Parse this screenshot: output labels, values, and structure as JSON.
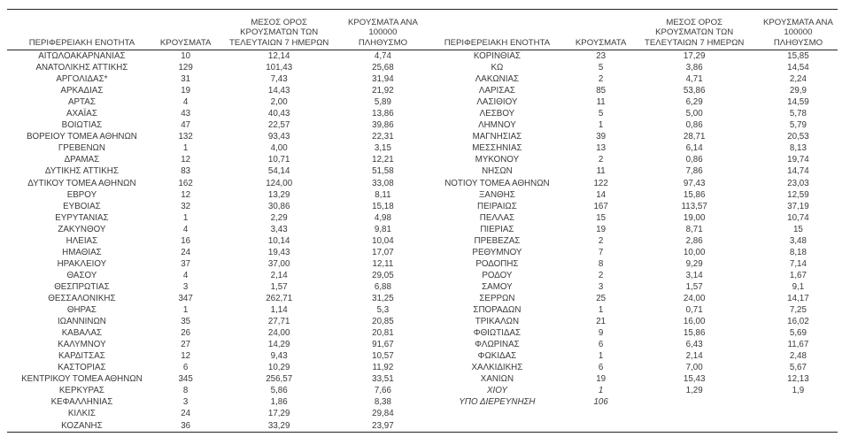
{
  "accent_colors": {
    "text": "#3a3a3a",
    "rule_lines": "#262626",
    "background": "#ffffff"
  },
  "columns": {
    "region": "ΠΕΡΙΦΕΡΕΙΑΚΗ ΕΝΟΤΗΤΑ",
    "cases": "ΚΡΟΥΣΜΑΤΑ",
    "avg7": "ΜΕΣΟΣ ΟΡΟΣ\nΚΡΟΥΣΜΑΤΩΝ ΤΩΝ\nΤΕΛΕΥΤΑΙΩΝ 7 ΗΜΕΡΩΝ",
    "per100k": "ΚΡΟΥΣΜΑΤΑ ΑΝΑ 100000\nΠΛΗΘΥΣΜΟ"
  },
  "tables": {
    "left": {
      "rows": [
        [
          "ΑΙΤΩΛΟΑΚΑΡΝΑΝΙΑΣ",
          "10",
          "12,14",
          "4,74"
        ],
        [
          "ΑΝΑΤΟΛΙΚΗΣ ΑΤΤΙΚΗΣ",
          "129",
          "101,43",
          "25,68"
        ],
        [
          "ΑΡΓΟΛΙΔΑΣ*",
          "31",
          "7,43",
          "31,94"
        ],
        [
          "ΑΡΚΑΔΙΑΣ",
          "19",
          "14,43",
          "21,92"
        ],
        [
          "ΑΡΤΑΣ",
          "4",
          "2,00",
          "5,89"
        ],
        [
          "ΑΧΑΪΑΣ",
          "43",
          "40,43",
          "13,86"
        ],
        [
          "ΒΟΙΩΤΙΑΣ",
          "47",
          "22,57",
          "39,86"
        ],
        [
          "ΒΟΡΕΙΟΥ ΤΟΜΕΑ ΑΘΗΝΩΝ",
          "132",
          "93,43",
          "22,31"
        ],
        [
          "ΓΡΕΒΕΝΩΝ",
          "1",
          "4,00",
          "3,15"
        ],
        [
          "ΔΡΑΜΑΣ",
          "12",
          "10,71",
          "12,21"
        ],
        [
          "ΔΥΤΙΚΗΣ ΑΤΤΙΚΗΣ",
          "83",
          "54,14",
          "51,58"
        ],
        [
          "ΔΥΤΙΚΟΥ ΤΟΜΕΑ ΑΘΗΝΩΝ",
          "162",
          "124,00",
          "33,08"
        ],
        [
          "ΕΒΡΟΥ",
          "12",
          "13,29",
          "8,11"
        ],
        [
          "ΕΥΒΟΙΑΣ",
          "32",
          "30,86",
          "15,18"
        ],
        [
          "ΕΥΡΥΤΑΝΙΑΣ",
          "1",
          "2,29",
          "4,98"
        ],
        [
          "ΖΑΚΥΝΘΟΥ",
          "4",
          "3,43",
          "9,81"
        ],
        [
          "ΗΛΕΙΑΣ",
          "16",
          "10,14",
          "10,04"
        ],
        [
          "ΗΜΑΘΙΑΣ",
          "24",
          "19,43",
          "17,07"
        ],
        [
          "ΗΡΑΚΛΕΙΟΥ",
          "37",
          "37,00",
          "12,11"
        ],
        [
          "ΘΑΣΟΥ",
          "4",
          "2,14",
          "29,05"
        ],
        [
          "ΘΕΣΠΡΩΤΙΑΣ",
          "3",
          "1,57",
          "6,88"
        ],
        [
          "ΘΕΣΣΑΛΟΝΙΚΗΣ",
          "347",
          "262,71",
          "31,25"
        ],
        [
          "ΘΗΡΑΣ",
          "1",
          "1,14",
          "5,3"
        ],
        [
          "ΙΩΑΝΝΙΝΩΝ",
          "35",
          "27,71",
          "20,85"
        ],
        [
          "ΚΑΒΑΛΑΣ",
          "26",
          "24,00",
          "20,81"
        ],
        [
          "ΚΑΛΥΜΝΟΥ",
          "27",
          "14,29",
          "91,67"
        ],
        [
          "ΚΑΡΔΙΤΣΑΣ",
          "12",
          "9,43",
          "10,57"
        ],
        [
          "ΚΑΣΤΟΡΙΑΣ",
          "6",
          "10,29",
          "11,92"
        ],
        [
          "ΚΕΝΤΡΙΚΟΥ ΤΟΜΕΑ ΑΘΗΝΩΝ",
          "345",
          "256,57",
          "33,51"
        ],
        [
          "ΚΕΡΚΥΡΑΣ",
          "8",
          "5,86",
          "7,66"
        ],
        [
          "ΚΕΦΑΛΛΗΝΙΑΣ",
          "3",
          "1,86",
          "8,38"
        ],
        [
          "ΚΙΛΚΙΣ",
          "24",
          "17,29",
          "29,84"
        ],
        [
          "ΚΟΖΑΝΗΣ",
          "36",
          "33,29",
          "23,97"
        ]
      ],
      "italic_cells": []
    },
    "right": {
      "rows": [
        [
          "ΚΟΡΙΝΘΙΑΣ",
          "23",
          "17,29",
          "15,85"
        ],
        [
          "ΚΩ",
          "5",
          "3,86",
          "14,54"
        ],
        [
          "ΛΑΚΩΝΙΑΣ",
          "2",
          "4,71",
          "2,24"
        ],
        [
          "ΛΑΡΙΣΑΣ",
          "85",
          "53,86",
          "29,9"
        ],
        [
          "ΛΑΣΙΘΙΟΥ",
          "11",
          "6,29",
          "14,59"
        ],
        [
          "ΛΕΣΒΟΥ",
          "5",
          "5,00",
          "5,78"
        ],
        [
          "ΛΗΜΝΟΥ",
          "1",
          "0,86",
          "5,79"
        ],
        [
          "ΜΑΓΝΗΣΙΑΣ",
          "39",
          "28,71",
          "20,53"
        ],
        [
          "ΜΕΣΣΗΝΙΑΣ",
          "13",
          "6,14",
          "8,13"
        ],
        [
          "ΜΥΚΟΝΟΥ",
          "2",
          "0,86",
          "19,74"
        ],
        [
          "ΝΗΣΩΝ",
          "11",
          "7,86",
          "14,74"
        ],
        [
          "ΝΟΤΙΟΥ ΤΟΜΕΑ ΑΘΗΝΩΝ",
          "122",
          "97,43",
          "23,03"
        ],
        [
          "ΞΑΝΘΗΣ",
          "14",
          "15,86",
          "12,59"
        ],
        [
          "ΠΕΙΡΑΙΩΣ",
          "167",
          "113,57",
          "37,19"
        ],
        [
          "ΠΕΛΛΑΣ",
          "15",
          "19,00",
          "10,74"
        ],
        [
          "ΠΙΕΡΙΑΣ",
          "19",
          "8,71",
          "15"
        ],
        [
          "ΠΡΕΒΕΖΑΣ",
          "2",
          "2,86",
          "3,48"
        ],
        [
          "ΡΕΘΥΜΝΟΥ",
          "7",
          "10,00",
          "8,18"
        ],
        [
          "ΡΟΔΟΠΗΣ",
          "8",
          "9,29",
          "7,14"
        ],
        [
          "ΡΟΔΟΥ",
          "2",
          "3,14",
          "1,67"
        ],
        [
          "ΣΑΜΟΥ",
          "3",
          "1,57",
          "9,1"
        ],
        [
          "ΣΕΡΡΩΝ",
          "25",
          "24,00",
          "14,17"
        ],
        [
          "ΣΠΟΡΑΔΩΝ",
          "1",
          "0,71",
          "7,25"
        ],
        [
          "ΤΡΙΚΑΛΩΝ",
          "21",
          "16,00",
          "16,02"
        ],
        [
          "ΦΘΙΩΤΙΔΑΣ",
          "9",
          "15,86",
          "5,69"
        ],
        [
          "ΦΛΩΡΙΝΑΣ",
          "6",
          "6,43",
          "11,67"
        ],
        [
          "ΦΩΚΙΔΑΣ",
          "1",
          "2,14",
          "2,48"
        ],
        [
          "ΧΑΛΚΙΔΙΚΗΣ",
          "6",
          "7,00",
          "5,67"
        ],
        [
          "ΧΑΝΙΩΝ",
          "19",
          "15,43",
          "12,13"
        ],
        [
          "ΧΙΟΥ",
          "1",
          "1,29",
          "1,9"
        ],
        [
          "ΥΠΟ ΔΙΕΡΕΥΝΗΣΗ",
          "106",
          "",
          ""
        ]
      ],
      "italic_cells": [
        {
          "row": 29,
          "cols": [
            0,
            1
          ]
        },
        {
          "row": 30,
          "cols": [
            0,
            1
          ]
        }
      ]
    }
  }
}
